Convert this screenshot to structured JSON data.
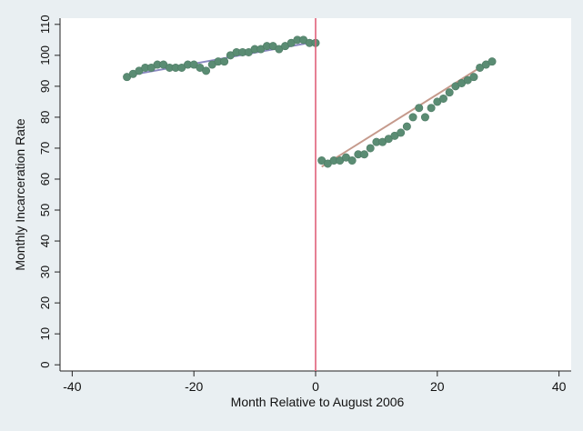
{
  "chart_data": {
    "type": "scatter",
    "title": "",
    "xlabel": "Month Relative to August 2006",
    "ylabel": "Monthly Incarceration Rate",
    "xlim": [
      -42,
      42
    ],
    "ylim": [
      -2,
      112
    ],
    "xticks": [
      -40,
      -20,
      0,
      20,
      40
    ],
    "xtick_labels": [
      "-40",
      "-20",
      "0",
      "20",
      "40"
    ],
    "yticks": [
      0,
      10,
      20,
      30,
      40,
      50,
      60,
      70,
      80,
      90,
      100,
      110
    ],
    "ytick_labels": [
      "0",
      "10",
      "20",
      "30",
      "40",
      "50",
      "60",
      "70",
      "80",
      "90",
      "100",
      "110"
    ],
    "grid": false,
    "legend": "none",
    "cutoff_line": {
      "x": 0,
      "color": "#e0607a"
    },
    "series": [
      {
        "marker_color": "#5a8c73",
        "points": [
          [
            -31,
            93
          ],
          [
            -30,
            94
          ],
          [
            -29,
            95
          ],
          [
            -28,
            96
          ],
          [
            -27,
            96
          ],
          [
            -26,
            97
          ],
          [
            -25,
            97
          ],
          [
            -24,
            96
          ],
          [
            -23,
            96
          ],
          [
            -22,
            96
          ],
          [
            -21,
            97
          ],
          [
            -20,
            97
          ],
          [
            -19,
            96
          ],
          [
            -18,
            95
          ],
          [
            -17,
            97
          ],
          [
            -16,
            98
          ],
          [
            -15,
            98
          ],
          [
            -14,
            100
          ],
          [
            -13,
            101
          ],
          [
            -12,
            101
          ],
          [
            -11,
            101
          ],
          [
            -10,
            102
          ],
          [
            -9,
            102
          ],
          [
            -8,
            103
          ],
          [
            -7,
            103
          ],
          [
            -6,
            102
          ],
          [
            -5,
            103
          ],
          [
            -4,
            104
          ],
          [
            -3,
            105
          ],
          [
            -2,
            105
          ],
          [
            -1,
            104
          ],
          [
            0,
            104
          ]
        ],
        "fit": {
          "from": [
            -31,
            93.4
          ],
          "to": [
            0,
            104.4
          ],
          "color": "#8a88c0"
        }
      },
      {
        "marker_color": "#5a8c73",
        "points": [
          [
            1,
            66
          ],
          [
            2,
            65
          ],
          [
            3,
            66
          ],
          [
            4,
            66
          ],
          [
            5,
            67
          ],
          [
            6,
            66
          ],
          [
            7,
            68
          ],
          [
            8,
            68
          ],
          [
            9,
            70
          ],
          [
            10,
            72
          ],
          [
            11,
            72
          ],
          [
            12,
            73
          ],
          [
            13,
            74
          ],
          [
            14,
            75
          ],
          [
            15,
            77
          ],
          [
            16,
            80
          ],
          [
            17,
            83
          ],
          [
            18,
            80
          ],
          [
            19,
            83
          ],
          [
            20,
            85
          ],
          [
            21,
            86
          ],
          [
            22,
            88
          ],
          [
            23,
            90
          ],
          [
            24,
            91
          ],
          [
            25,
            92
          ],
          [
            26,
            93
          ],
          [
            27,
            96
          ],
          [
            28,
            97
          ],
          [
            29,
            98
          ]
        ],
        "fit": {
          "from": [
            1,
            64
          ],
          "to": [
            29,
            98.5
          ],
          "color": "#c59a8c"
        }
      }
    ]
  }
}
